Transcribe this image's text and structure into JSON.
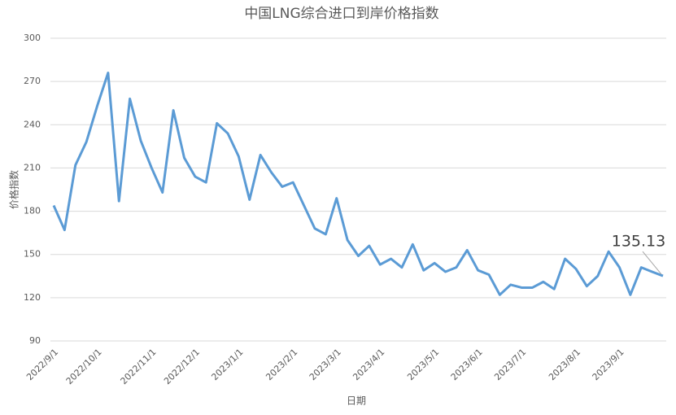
{
  "chart_data": {
    "type": "line",
    "title": "中国LNG综合进口到岸价格指数",
    "x_label": "日期",
    "y_label": "价格指数",
    "categories": [
      "2022/9/1",
      null,
      null,
      null,
      "2022/10/1",
      null,
      null,
      null,
      null,
      "2022/11/1",
      null,
      null,
      null,
      "2022/12/1",
      null,
      null,
      null,
      "2023/1/1",
      null,
      null,
      null,
      null,
      "2023/2/1",
      null,
      null,
      null,
      "2023/3/1",
      null,
      null,
      null,
      "2023/4/1",
      null,
      null,
      null,
      null,
      "2023/5/1",
      null,
      null,
      null,
      "2023/6/1",
      null,
      null,
      null,
      "2023/7/1",
      null,
      null,
      null,
      null,
      "2023/8/1",
      null,
      null,
      null,
      "2023/9/1",
      null,
      null,
      null,
      null
    ],
    "series": [
      {
        "name": "价格指数",
        "color": "#5b9bd5",
        "values": [
          184,
          167,
          212,
          228,
          253,
          276,
          187,
          258,
          229,
          210,
          193,
          250,
          217,
          204,
          200,
          241,
          234,
          218,
          188,
          219,
          207,
          197,
          200,
          184,
          168,
          164,
          189,
          160,
          149,
          156,
          143,
          147,
          141,
          157,
          139,
          144,
          138,
          141,
          153,
          139,
          136,
          122,
          129,
          127,
          127,
          131,
          126,
          147,
          140,
          128,
          135,
          152,
          141,
          122,
          141,
          138,
          135.13
        ]
      }
    ],
    "data_labels": "last",
    "ylim": [
      90,
      300
    ],
    "yticks": [
      90,
      120,
      150,
      180,
      210,
      240,
      270,
      300
    ],
    "grid": true
  }
}
